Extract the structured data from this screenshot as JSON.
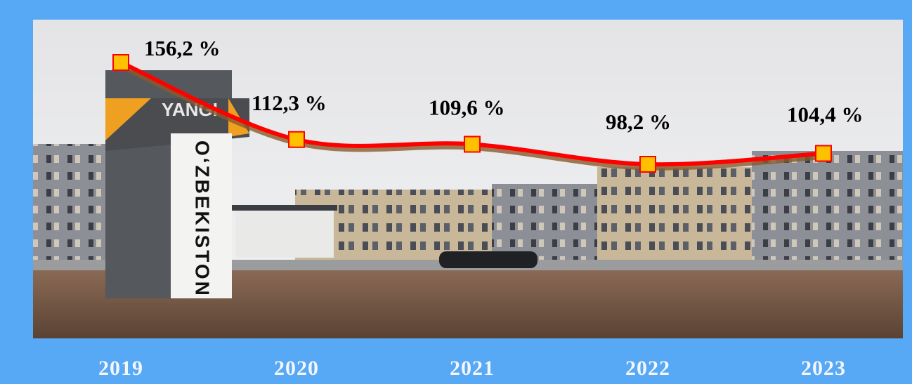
{
  "chart_data": {
    "type": "line",
    "categories": [
      "2019",
      "2020",
      "2021",
      "2022",
      "2023"
    ],
    "values": [
      156.2,
      112.3,
      109.6,
      98.2,
      104.4
    ],
    "value_labels": [
      "156,2 %",
      "112,3 %",
      "109,6 %",
      "98,2 %",
      "104,4 %"
    ],
    "color": "#ff0000",
    "marker_color": "#ffc000"
  },
  "photo": {
    "sign_top": "YANGI",
    "sign_vertical": "OʻZBEKISTON"
  }
}
